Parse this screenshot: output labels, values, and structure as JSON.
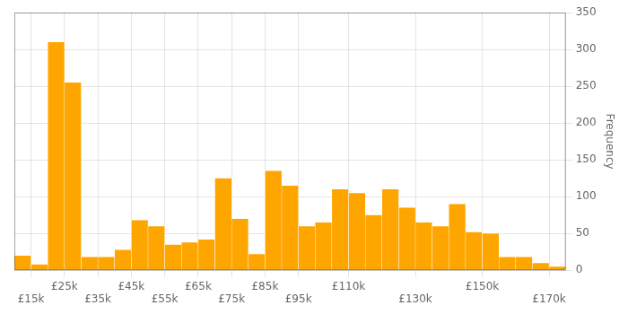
{
  "chart_data": {
    "type": "histogram",
    "bins": [
      10000,
      15000,
      20000,
      25000,
      30000,
      35000,
      40000,
      45000,
      50000,
      55000,
      60000,
      65000,
      70000,
      75000,
      80000,
      85000,
      90000,
      95000,
      100000,
      105000,
      110000,
      115000,
      120000,
      125000,
      130000,
      135000,
      140000,
      145000,
      150000,
      155000,
      160000,
      165000,
      170000,
      175000
    ],
    "values": [
      20,
      8,
      310,
      255,
      18,
      18,
      28,
      68,
      60,
      35,
      38,
      42,
      125,
      70,
      22,
      135,
      115,
      60,
      65,
      110,
      105,
      75,
      110,
      85,
      65,
      60,
      90,
      52,
      50,
      18,
      18,
      10,
      5
    ],
    "color": "#FFA500",
    "ylabel": "Frequency",
    "xlim": [
      10000,
      175000
    ],
    "ylim": [
      0,
      350
    ],
    "yticks": [
      0,
      50,
      100,
      150,
      200,
      250,
      300,
      350
    ],
    "xticks": [
      {
        "value": 15000,
        "label": "£15k"
      },
      {
        "value": 25000,
        "label": "£25k"
      },
      {
        "value": 35000,
        "label": "£35k"
      },
      {
        "value": 45000,
        "label": "£45k"
      },
      {
        "value": 55000,
        "label": "£55k"
      },
      {
        "value": 65000,
        "label": "£65k"
      },
      {
        "value": 75000,
        "label": "£75k"
      },
      {
        "value": 85000,
        "label": "£85k"
      },
      {
        "value": 95000,
        "label": "£95k"
      },
      {
        "value": 110000,
        "label": "£110k"
      },
      {
        "value": 130000,
        "label": "£130k"
      },
      {
        "value": 150000,
        "label": "£150k"
      },
      {
        "value": 170000,
        "label": "£170k"
      }
    ],
    "grid": true
  }
}
